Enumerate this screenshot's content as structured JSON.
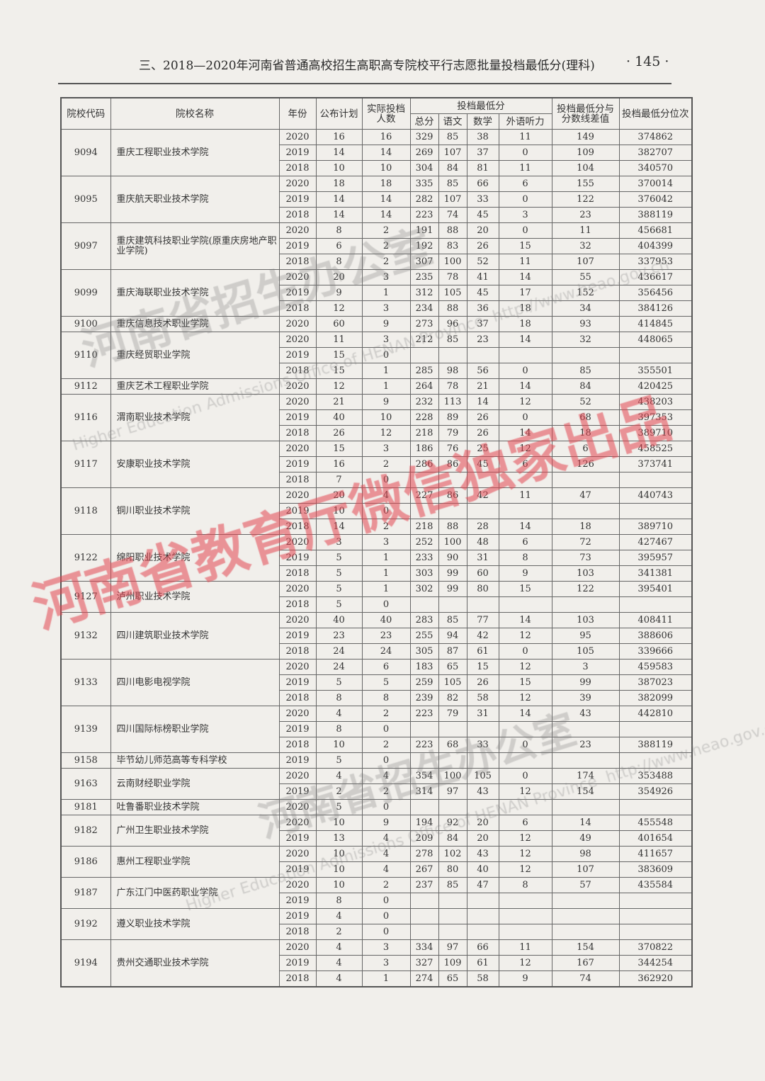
{
  "header": {
    "title": "三、2018—2020年河南省普通高校招生高职高专院校平行志愿批量投档最低分(理科)",
    "page_number": "· 145 ·"
  },
  "table": {
    "headers": {
      "code": "院校代码",
      "name": "院校名称",
      "year": "年份",
      "plan": "公布计划",
      "actual": "实际投档人数",
      "min_score": "投档最低分",
      "total": "总分",
      "chinese": "语文",
      "math": "数学",
      "foreign": "外语听力",
      "diff": "投档最低分与分数线差值",
      "rank": "投档最低分位次"
    },
    "schools": [
      {
        "code": "9094",
        "name": "重庆工程职业技术学院",
        "rows": [
          [
            "2020",
            "16",
            "16",
            "329",
            "85",
            "38",
            "11",
            "149",
            "374862"
          ],
          [
            "2019",
            "14",
            "14",
            "269",
            "107",
            "37",
            "0",
            "109",
            "382707"
          ],
          [
            "2018",
            "10",
            "10",
            "304",
            "84",
            "81",
            "11",
            "104",
            "340570"
          ]
        ]
      },
      {
        "code": "9095",
        "name": "重庆航天职业技术学院",
        "rows": [
          [
            "2020",
            "18",
            "18",
            "335",
            "85",
            "66",
            "6",
            "155",
            "370014"
          ],
          [
            "2019",
            "14",
            "14",
            "282",
            "107",
            "33",
            "0",
            "122",
            "376042"
          ],
          [
            "2018",
            "14",
            "14",
            "223",
            "74",
            "45",
            "3",
            "23",
            "388119"
          ]
        ]
      },
      {
        "code": "9097",
        "name": "重庆建筑科技职业学院(原重庆房地产职业学院)",
        "rows": [
          [
            "2020",
            "8",
            "2",
            "191",
            "88",
            "20",
            "0",
            "11",
            "456681"
          ],
          [
            "2019",
            "6",
            "2",
            "192",
            "83",
            "26",
            "15",
            "32",
            "404399"
          ],
          [
            "2018",
            "8",
            "2",
            "307",
            "100",
            "52",
            "11",
            "107",
            "337953"
          ]
        ]
      },
      {
        "code": "9099",
        "name": "重庆海联职业技术学院",
        "rows": [
          [
            "2020",
            "20",
            "3",
            "235",
            "78",
            "41",
            "14",
            "55",
            "436617"
          ],
          [
            "2019",
            "9",
            "1",
            "312",
            "105",
            "45",
            "17",
            "152",
            "356456"
          ],
          [
            "2018",
            "12",
            "3",
            "234",
            "88",
            "36",
            "18",
            "34",
            "384126"
          ]
        ]
      },
      {
        "code": "9100",
        "name": "重庆信息技术职业学院",
        "rows": [
          [
            "2020",
            "60",
            "9",
            "273",
            "96",
            "37",
            "18",
            "93",
            "414845"
          ]
        ]
      },
      {
        "code": "9110",
        "name": "重庆经贸职业学院",
        "rows": [
          [
            "2020",
            "11",
            "3",
            "212",
            "85",
            "23",
            "14",
            "32",
            "448065"
          ],
          [
            "2019",
            "15",
            "0",
            "",
            "",
            "",
            "",
            "",
            ""
          ],
          [
            "2018",
            "15",
            "1",
            "285",
            "98",
            "56",
            "0",
            "85",
            "355501"
          ]
        ]
      },
      {
        "code": "9112",
        "name": "重庆艺术工程职业学院",
        "rows": [
          [
            "2020",
            "12",
            "1",
            "264",
            "78",
            "21",
            "14",
            "84",
            "420425"
          ]
        ]
      },
      {
        "code": "9116",
        "name": "渭南职业技术学院",
        "rows": [
          [
            "2020",
            "21",
            "9",
            "232",
            "113",
            "14",
            "12",
            "52",
            "438203"
          ],
          [
            "2019",
            "40",
            "10",
            "228",
            "89",
            "26",
            "0",
            "68",
            "397353"
          ],
          [
            "2018",
            "26",
            "12",
            "218",
            "79",
            "26",
            "14",
            "18",
            "389710"
          ]
        ]
      },
      {
        "code": "9117",
        "name": "安康职业技术学院",
        "rows": [
          [
            "2020",
            "15",
            "3",
            "186",
            "76",
            "25",
            "12",
            "6",
            "458525"
          ],
          [
            "2019",
            "16",
            "2",
            "286",
            "86",
            "45",
            "6",
            "126",
            "373741"
          ],
          [
            "2018",
            "7",
            "0",
            "",
            "",
            "",
            "",
            "",
            ""
          ]
        ]
      },
      {
        "code": "9118",
        "name": "铜川职业技术学院",
        "rows": [
          [
            "2020",
            "20",
            "4",
            "227",
            "86",
            "42",
            "11",
            "47",
            "440743"
          ],
          [
            "2019",
            "10",
            "0",
            "",
            "",
            "",
            "",
            "",
            ""
          ],
          [
            "2018",
            "14",
            "2",
            "218",
            "88",
            "28",
            "14",
            "18",
            "389710"
          ]
        ]
      },
      {
        "code": "9122",
        "name": "绵阳职业技术学院",
        "rows": [
          [
            "2020",
            "3",
            "3",
            "252",
            "100",
            "48",
            "6",
            "72",
            "427467"
          ],
          [
            "2019",
            "5",
            "1",
            "233",
            "90",
            "31",
            "8",
            "73",
            "395957"
          ],
          [
            "2018",
            "5",
            "1",
            "303",
            "99",
            "60",
            "9",
            "103",
            "341381"
          ]
        ]
      },
      {
        "code": "9127",
        "name": "泸州职业技术学院",
        "rows": [
          [
            "2020",
            "5",
            "1",
            "302",
            "99",
            "80",
            "15",
            "122",
            "395401"
          ],
          [
            "2018",
            "5",
            "0",
            "",
            "",
            "",
            "",
            "",
            ""
          ]
        ]
      },
      {
        "code": "9132",
        "name": "四川建筑职业技术学院",
        "rows": [
          [
            "2020",
            "40",
            "40",
            "283",
            "85",
            "77",
            "14",
            "103",
            "408411"
          ],
          [
            "2019",
            "23",
            "23",
            "255",
            "94",
            "42",
            "12",
            "95",
            "388606"
          ],
          [
            "2018",
            "24",
            "24",
            "305",
            "87",
            "61",
            "0",
            "105",
            "339666"
          ]
        ]
      },
      {
        "code": "9133",
        "name": "四川电影电视学院",
        "rows": [
          [
            "2020",
            "24",
            "6",
            "183",
            "65",
            "15",
            "12",
            "3",
            "459583"
          ],
          [
            "2019",
            "5",
            "5",
            "259",
            "105",
            "26",
            "15",
            "99",
            "387023"
          ],
          [
            "2018",
            "8",
            "8",
            "239",
            "82",
            "58",
            "12",
            "39",
            "382099"
          ]
        ]
      },
      {
        "code": "9139",
        "name": "四川国际标榜职业学院",
        "rows": [
          [
            "2020",
            "4",
            "2",
            "223",
            "79",
            "31",
            "14",
            "43",
            "442810"
          ],
          [
            "2019",
            "8",
            "0",
            "",
            "",
            "",
            "",
            "",
            ""
          ],
          [
            "2018",
            "10",
            "2",
            "223",
            "68",
            "33",
            "0",
            "23",
            "388119"
          ]
        ]
      },
      {
        "code": "9158",
        "name": "毕节幼儿师范高等专科学校",
        "rows": [
          [
            "2019",
            "5",
            "0",
            "",
            "",
            "",
            "",
            "",
            ""
          ]
        ]
      },
      {
        "code": "9163",
        "name": "云南财经职业学院",
        "rows": [
          [
            "2020",
            "4",
            "4",
            "354",
            "100",
            "105",
            "0",
            "174",
            "353488"
          ],
          [
            "2019",
            "2",
            "2",
            "314",
            "97",
            "43",
            "12",
            "154",
            "354926"
          ]
        ]
      },
      {
        "code": "9181",
        "name": "吐鲁番职业技术学院",
        "rows": [
          [
            "2020",
            "5",
            "0",
            "",
            "",
            "",
            "",
            "",
            ""
          ]
        ]
      },
      {
        "code": "9182",
        "name": "广州卫生职业技术学院",
        "rows": [
          [
            "2020",
            "10",
            "9",
            "194",
            "92",
            "20",
            "6",
            "14",
            "455548"
          ],
          [
            "2019",
            "13",
            "4",
            "209",
            "84",
            "20",
            "12",
            "49",
            "401654"
          ]
        ]
      },
      {
        "code": "9186",
        "name": "惠州工程职业学院",
        "rows": [
          [
            "2020",
            "10",
            "4",
            "278",
            "102",
            "43",
            "12",
            "98",
            "411657"
          ],
          [
            "2019",
            "10",
            "4",
            "267",
            "80",
            "40",
            "12",
            "107",
            "383609"
          ]
        ]
      },
      {
        "code": "9187",
        "name": "广东江门中医药职业学院",
        "rows": [
          [
            "2020",
            "10",
            "2",
            "237",
            "85",
            "47",
            "8",
            "57",
            "435584"
          ],
          [
            "2019",
            "8",
            "0",
            "",
            "",
            "",
            "",
            "",
            ""
          ]
        ]
      },
      {
        "code": "9192",
        "name": "遵义职业技术学院",
        "rows": [
          [
            "2019",
            "4",
            "0",
            "",
            "",
            "",
            "",
            "",
            ""
          ],
          [
            "2018",
            "2",
            "0",
            "",
            "",
            "",
            "",
            "",
            ""
          ]
        ]
      },
      {
        "code": "9194",
        "name": "贵州交通职业技术学院",
        "rows": [
          [
            "2020",
            "4",
            "3",
            "334",
            "97",
            "66",
            "11",
            "154",
            "370822"
          ],
          [
            "2019",
            "4",
            "3",
            "327",
            "109",
            "61",
            "12",
            "167",
            "344254"
          ],
          [
            "2018",
            "4",
            "1",
            "274",
            "65",
            "58",
            "9",
            "74",
            "362920"
          ]
        ]
      }
    ]
  },
  "watermarks": {
    "red": "河南省教育厅微信独家出品",
    "gray": "河南省招生办公室",
    "english": "Higher Education Admissions Office of HENAN Province",
    "url": "http://www.heao.gov.cn"
  }
}
